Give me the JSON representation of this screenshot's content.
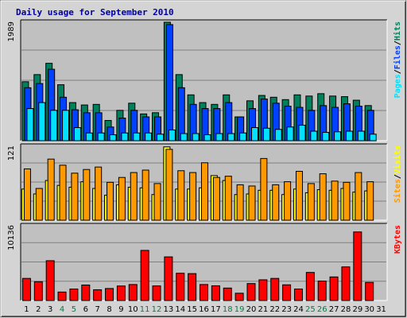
{
  "chart_data": {
    "type": "bar",
    "title": "Daily usage for September 2010",
    "days": [
      "1",
      "2",
      "3",
      "4",
      "5",
      "6",
      "7",
      "8",
      "9",
      "10",
      "11",
      "12",
      "13",
      "14",
      "15",
      "16",
      "17",
      "18",
      "19",
      "20",
      "21",
      "22",
      "23",
      "24",
      "25",
      "26",
      "27",
      "28",
      "29",
      "30",
      "31"
    ],
    "weekend_days": [
      "4",
      "5",
      "11",
      "12",
      "18",
      "19",
      "25",
      "26"
    ],
    "colors": {
      "title": "#0000a0",
      "day_normal": "#000000",
      "day_weekend": "#008040",
      "hits": "#00805c",
      "files": "#0040ff",
      "pages": "#00e0ff",
      "visits": "#ffff00",
      "sites": "#ff9900",
      "kbytes": "#ff0000",
      "background": "#c0c0c0",
      "frame": "#d4d4d4"
    },
    "panels": [
      {
        "id": "hits-files-pages",
        "y_max_label": "1989",
        "y_max": 1989,
        "legend": [
          {
            "label": "Pages",
            "color": "#00e0ff"
          },
          {
            "label": "/",
            "color": "#000000"
          },
          {
            "label": "Files",
            "color": "#0040ff"
          },
          {
            "label": "/",
            "color": "#000000"
          },
          {
            "label": "Hits",
            "color": "#00805c"
          }
        ],
        "series": [
          {
            "name": "Hits",
            "color": "#00805c",
            "values": [
              990,
              1110,
              1300,
              940,
              640,
              600,
              610,
              340,
              510,
              630,
              450,
              470,
              1989,
              1110,
              770,
              640,
              610,
              770,
              400,
              670,
              760,
              730,
              690,
              770,
              750,
              790,
              750,
              740,
              680,
              590,
              0
            ]
          },
          {
            "name": "Files",
            "color": "#0040ff",
            "values": [
              890,
              960,
              1200,
              730,
              520,
              470,
              470,
              230,
              380,
              510,
              400,
              400,
              1950,
              890,
              610,
              540,
              540,
              640,
              400,
              540,
              700,
              630,
              580,
              560,
              510,
              590,
              560,
              620,
              580,
              510,
              0
            ]
          },
          {
            "name": "Pages",
            "color": "#00e0ff",
            "values": [
              540,
              640,
              510,
              510,
              220,
              130,
              130,
              100,
              130,
              130,
              130,
              110,
              180,
              120,
              120,
              100,
              120,
              120,
              130,
              220,
              210,
              190,
              230,
              260,
              160,
              140,
              150,
              160,
              160,
              110,
              0
            ]
          }
        ]
      },
      {
        "id": "visits-sites",
        "y_max_label": "121",
        "y_max": 121,
        "legend": [
          {
            "label": "Sites",
            "color": "#ff9900"
          },
          {
            "label": "/",
            "color": "#000000"
          },
          {
            "label": "Visits",
            "color": "#ffff00"
          }
        ],
        "series": [
          {
            "name": "Visits",
            "color": "#ffff00",
            "values": [
              51,
              43,
              65,
              57,
              54,
              63,
              52,
              41,
              58,
              54,
              53,
              42,
              120,
              51,
              51,
              53,
              73,
              65,
              42,
              43,
              49,
              49,
              42,
              51,
              45,
              50,
              49,
              52,
              46,
              48,
              0
            ]
          },
          {
            "name": "Sites",
            "color": "#ff9900",
            "values": [
              84,
              52,
              100,
              90,
              77,
              83,
              87,
              62,
              70,
              78,
              82,
              60,
              116,
              81,
              78,
              94,
              70,
              72,
              58,
              56,
              101,
              58,
              63,
              80,
              60,
              76,
              64,
              62,
              78,
              63,
              0
            ]
          }
        ]
      },
      {
        "id": "kbytes",
        "y_max_label": "10136",
        "y_max": 10136,
        "legend": [
          {
            "label": "KBytes",
            "color": "#ff0000"
          }
        ],
        "series": [
          {
            "name": "KBytes",
            "color": "#ff0000",
            "values": [
              3000,
              2550,
              5400,
              1150,
              1560,
              2100,
              1460,
              1630,
              1970,
              2170,
              6800,
              1980,
              5920,
              3700,
              3650,
              2170,
              2000,
              1690,
              990,
              2300,
              2810,
              3000,
              2130,
              1560,
              3810,
              2640,
              3200,
              4560,
              9300,
              2460,
              0
            ]
          }
        ]
      }
    ]
  }
}
